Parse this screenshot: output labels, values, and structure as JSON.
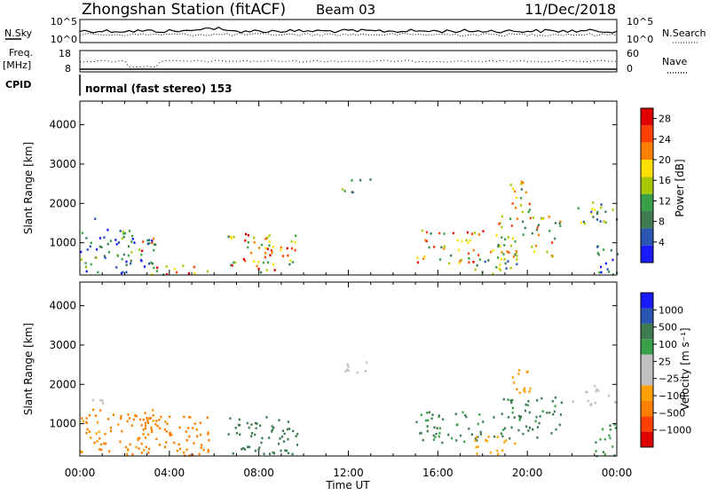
{
  "header": {
    "station": "Zhongshan Station (fitACF)",
    "beam": "Beam 03",
    "date": "11/Dec/2018"
  },
  "top_panels": {
    "nsky_label": "N.Sky",
    "nsearch_label": "N.Search",
    "freq_label": "Freq.",
    "freq_unit": "[MHz]",
    "nave_label": "Nave",
    "cpid_label": "CPID",
    "cpid_text": "normal (fast stereo) 153",
    "noise_ticks_left": [
      "10^5",
      "10^0"
    ],
    "noise_ticks_right": [
      "10^5",
      "10^0"
    ],
    "freq_ticks": [
      "18",
      "8"
    ],
    "nave_ticks": [
      "60",
      "0"
    ]
  },
  "x_axis": {
    "label": "Time UT",
    "ticks": [
      "00:00",
      "04:00",
      "08:00",
      "12:00",
      "16:00",
      "20:00",
      "00:00"
    ]
  },
  "colors": {
    "power": [
      "#1a1aff",
      "#2a55b0",
      "#3e7b50",
      "#3aa04a",
      "#a8c800",
      "#ffe000",
      "#ff8000",
      "#ff4000",
      "#e00000"
    ],
    "velocity": [
      "#1a1aff",
      "#2a55b0",
      "#3e7b50",
      "#3aa04a",
      "#c0c0c0",
      "#c0c0c0",
      "#ffa000",
      "#ff8000",
      "#ff4000",
      "#e00000"
    ]
  },
  "chart_data": [
    {
      "type": "heatmap",
      "name_role": "power-panel",
      "xlabel": "",
      "ylabel": "Slant Range [km]",
      "xlim": [
        0,
        24
      ],
      "ylim": [
        180,
        4600
      ],
      "yticks": [
        "1000",
        "2000",
        "3000",
        "4000"
      ],
      "ytick_values": [
        1000,
        2000,
        3000,
        4000
      ],
      "colorbar": {
        "label": "Power [dB]",
        "ticks": [
          "4",
          "8",
          "12",
          "16",
          "20",
          "24",
          "28"
        ],
        "tick_values": [
          4,
          8,
          12,
          16,
          20,
          24,
          28
        ],
        "range": [
          0,
          30
        ]
      },
      "regions": [
        {
          "t0": 0.0,
          "t1": 3.4,
          "r0": 250,
          "r1": 1400,
          "level": 8
        },
        {
          "t0": 0.1,
          "t1": 1.0,
          "r0": 1450,
          "r1": 1650,
          "level": 4
        },
        {
          "t0": 2.6,
          "t1": 3.6,
          "r0": 800,
          "r1": 1250,
          "level": 20
        },
        {
          "t0": 3.0,
          "t1": 5.8,
          "r0": 200,
          "r1": 450,
          "level": 20
        },
        {
          "t0": 6.6,
          "t1": 9.7,
          "r0": 250,
          "r1": 1250,
          "level": 20
        },
        {
          "t0": 11.7,
          "t1": 13.0,
          "r0": 2300,
          "r1": 2650,
          "level": 8
        },
        {
          "t0": 15.0,
          "t1": 18.0,
          "r0": 500,
          "r1": 1350,
          "level": 20
        },
        {
          "t0": 17.5,
          "t1": 19.5,
          "r0": 200,
          "r1": 700,
          "level": 12
        },
        {
          "t0": 18.3,
          "t1": 21.5,
          "r0": 650,
          "r1": 1700,
          "level": 16
        },
        {
          "t0": 19.2,
          "t1": 20.2,
          "r0": 1800,
          "r1": 2600,
          "level": 16
        },
        {
          "t0": 22.0,
          "t1": 24.0,
          "r0": 1500,
          "r1": 2050,
          "level": 12
        },
        {
          "t0": 23.0,
          "t1": 24.0,
          "r0": 200,
          "r1": 1050,
          "level": 8
        }
      ]
    },
    {
      "type": "heatmap",
      "name_role": "velocity-panel",
      "xlabel": "Time UT",
      "ylabel": "Slant Range [km]",
      "xlim": [
        0,
        24
      ],
      "ylim": [
        180,
        4600
      ],
      "yticks": [
        "1000",
        "2000",
        "3000",
        "4000"
      ],
      "ytick_values": [
        1000,
        2000,
        3000,
        4000
      ],
      "colorbar": {
        "label": "Velocity [m s⁻¹]",
        "ticks": [
          "1000",
          "500",
          "100",
          "25",
          "−25",
          "−100",
          "−500",
          "−1000"
        ],
        "tick_values": [
          1000,
          500,
          100,
          25,
          -25,
          -100,
          -500,
          -1000
        ]
      },
      "regions": [
        {
          "t0": 0.0,
          "t1": 3.4,
          "r0": 250,
          "r1": 1400,
          "level": -150
        },
        {
          "t0": 0.1,
          "t1": 1.0,
          "r0": 1450,
          "r1": 1650,
          "level": 0
        },
        {
          "t0": 2.6,
          "t1": 5.8,
          "r0": 200,
          "r1": 1250,
          "level": -300
        },
        {
          "t0": 6.6,
          "t1": 9.7,
          "r0": 250,
          "r1": 1250,
          "level": 300
        },
        {
          "t0": 11.7,
          "t1": 13.0,
          "r0": 2300,
          "r1": 2650,
          "level": 0
        },
        {
          "t0": 15.0,
          "t1": 18.0,
          "r0": 500,
          "r1": 1350,
          "level": 120
        },
        {
          "t0": 17.5,
          "t1": 19.5,
          "r0": 200,
          "r1": 700,
          "level": -60
        },
        {
          "t0": 18.3,
          "t1": 21.5,
          "r0": 650,
          "r1": 1700,
          "level": 150
        },
        {
          "t0": 19.2,
          "t1": 20.2,
          "r0": 1800,
          "r1": 2600,
          "level": -80
        },
        {
          "t0": 22.0,
          "t1": 24.0,
          "r0": 1500,
          "r1": 2050,
          "level": 0
        },
        {
          "t0": 23.0,
          "t1": 24.0,
          "r0": 200,
          "r1": 1050,
          "level": 80
        }
      ]
    }
  ]
}
